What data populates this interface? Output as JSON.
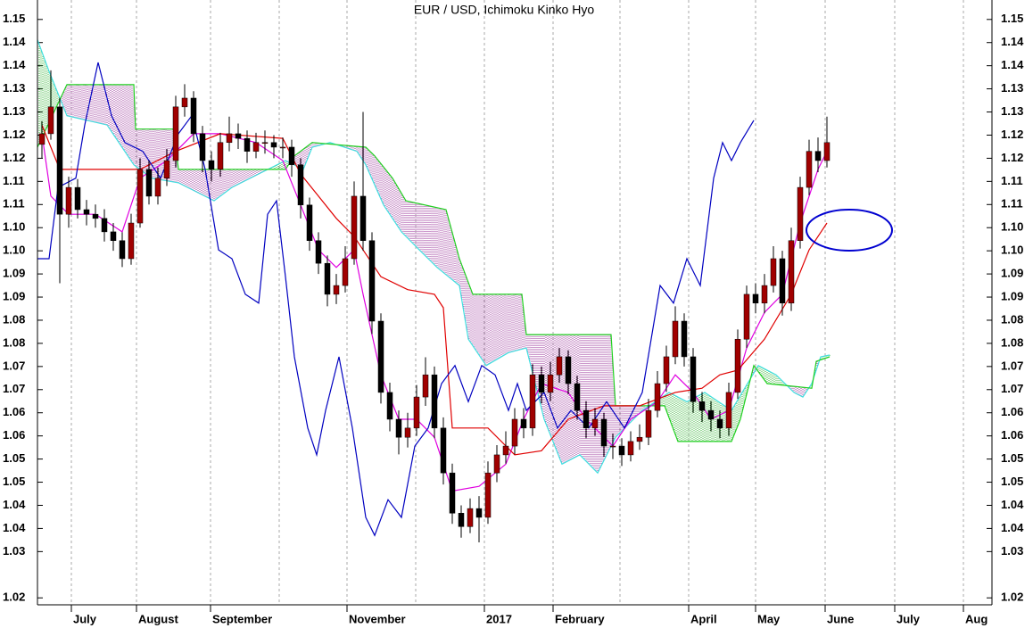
{
  "chart_data": {
    "type": "candlestick",
    "title": "EUR / USD, Ichimoku Kinko Hyo",
    "xlim": [
      -0.5,
      106.5
    ],
    "ylim": [
      1.0185,
      1.1492
    ],
    "xticks": [
      {
        "value": 3.3,
        "label": "July"
      },
      {
        "value": 10.6,
        "label": "August"
      },
      {
        "value": 18.9,
        "label": "September"
      },
      {
        "value": 34.2,
        "label": "November"
      },
      {
        "value": 49.6,
        "label": "2017"
      },
      {
        "value": 57.3,
        "label": "February"
      },
      {
        "value": 72.5,
        "label": "April"
      },
      {
        "value": 80.0,
        "label": "May"
      },
      {
        "value": 87.8,
        "label": "June"
      },
      {
        "value": 95.6,
        "label": "July"
      },
      {
        "value": 103.3,
        "label": "Aug"
      }
    ],
    "xgrid": [
      26.6,
      41.9,
      64.8
    ],
    "yticks": [
      {
        "value": 1.145,
        "label": "1.15"
      },
      {
        "value": 1.14,
        "label": "1.14"
      },
      {
        "value": 1.135,
        "label": "1.14"
      },
      {
        "value": 1.13,
        "label": "1.13"
      },
      {
        "value": 1.125,
        "label": "1.13"
      },
      {
        "value": 1.12,
        "label": "1.12"
      },
      {
        "value": 1.115,
        "label": "1.12"
      },
      {
        "value": 1.11,
        "label": "1.11"
      },
      {
        "value": 1.105,
        "label": "1.11"
      },
      {
        "value": 1.1,
        "label": "1.10"
      },
      {
        "value": 1.095,
        "label": "1.10"
      },
      {
        "value": 1.09,
        "label": "1.09"
      },
      {
        "value": 1.085,
        "label": "1.09"
      },
      {
        "value": 1.08,
        "label": "1.08"
      },
      {
        "value": 1.075,
        "label": "1.08"
      },
      {
        "value": 1.07,
        "label": "1.07"
      },
      {
        "value": 1.065,
        "label": "1.07"
      },
      {
        "value": 1.06,
        "label": "1.06"
      },
      {
        "value": 1.055,
        "label": "1.06"
      },
      {
        "value": 1.05,
        "label": "1.05"
      },
      {
        "value": 1.045,
        "label": "1.05"
      },
      {
        "value": 1.04,
        "label": "1.04"
      },
      {
        "value": 1.035,
        "label": "1.04"
      },
      {
        "value": 1.03,
        "label": "1.03"
      },
      {
        "value": 1.02,
        "label": "1.02"
      }
    ],
    "up_color": "#a00000",
    "down_color": "#000000",
    "x": [
      0,
      1,
      2,
      3,
      4,
      5,
      6,
      7,
      8,
      9,
      10,
      11,
      12,
      13,
      14,
      15,
      16,
      17,
      18,
      19,
      20,
      21,
      22,
      23,
      24,
      25,
      26,
      27,
      28,
      29,
      30,
      31,
      32,
      33,
      34,
      35,
      36,
      37,
      38,
      39,
      40,
      41,
      42,
      43,
      44,
      45,
      46,
      47,
      48,
      49,
      50,
      51,
      52,
      53,
      54,
      55,
      56,
      57,
      58,
      59,
      60,
      61,
      62,
      63,
      64,
      65,
      66,
      67,
      68,
      69,
      70,
      71,
      72,
      73,
      74,
      75,
      76,
      77,
      78,
      79,
      80,
      81,
      82,
      83,
      84,
      85,
      86,
      87,
      88
    ],
    "open": [
      1.118,
      1.1203,
      1.1261,
      1.1029,
      1.1087,
      1.1039,
      1.1029,
      1.102,
      1.0991,
      1.0972,
      1.0933,
      1.101,
      1.1126,
      1.1068,
      1.1107,
      1.1145,
      1.1261,
      1.128,
      1.1203,
      1.1145,
      1.1126,
      1.1184,
      1.1203,
      1.1193,
      1.1165,
      1.1184,
      1.1184,
      1.1174,
      1.1174,
      1.1136,
      1.1049,
      1.0972,
      1.0923,
      1.0856,
      1.0875,
      1.0933,
      1.1068,
      1.0972,
      1.0798,
      1.0644,
      1.0586,
      1.0547,
      1.0567,
      1.0634,
      1.0682,
      1.0567,
      1.047,
      1.0383,
      1.0354,
      1.0393,
      1.0374,
      1.047,
      1.0509,
      1.0528,
      1.0586,
      1.0567,
      1.0682,
      1.0644,
      1.0682,
      1.0721,
      1.0663,
      1.0605,
      1.0567,
      1.0586,
      1.0528,
      1.0528,
      1.0509,
      1.0538,
      1.0547,
      1.0605,
      1.0663,
      1.0721,
      1.0798,
      1.0721,
      1.0624,
      1.0605,
      1.0586,
      1.0567,
      1.0644,
      1.0759,
      1.0856,
      1.0837,
      1.0875,
      1.0933,
      1.0837,
      1.0972,
      1.1087,
      1.1165,
      1.1145
    ],
    "high": [
      1.123,
      1.134,
      1.128,
      1.111,
      1.1105,
      1.106,
      1.105,
      1.104,
      1.101,
      1.099,
      1.103,
      1.115,
      1.1145,
      1.113,
      1.117,
      1.1285,
      1.131,
      1.1295,
      1.122,
      1.1165,
      1.1205,
      1.124,
      1.1225,
      1.121,
      1.1205,
      1.121,
      1.12,
      1.1195,
      1.119,
      1.115,
      1.1065,
      1.099,
      1.094,
      1.09,
      1.096,
      1.11,
      1.125,
      1.099,
      1.0815,
      1.0665,
      1.0605,
      1.06,
      1.066,
      1.072,
      1.07,
      1.059,
      1.049,
      1.04,
      1.0415,
      1.042,
      1.0495,
      1.053,
      1.056,
      1.061,
      1.061,
      1.0705,
      1.07,
      1.071,
      1.074,
      1.0735,
      1.068,
      1.0625,
      1.061,
      1.06,
      1.0555,
      1.0545,
      1.056,
      1.0575,
      1.063,
      1.069,
      1.0745,
      1.083,
      1.0815,
      1.074,
      1.0645,
      1.0625,
      1.0605,
      1.0665,
      1.078,
      1.0875,
      1.088,
      1.09,
      1.096,
      1.095,
      1.1,
      1.111,
      1.119,
      1.1195,
      1.124
    ],
    "low": [
      1.115,
      1.119,
      1.088,
      1.1,
      1.102,
      1.1005,
      1.1,
      1.097,
      1.095,
      1.0915,
      1.092,
      1.1,
      1.105,
      1.105,
      1.109,
      1.113,
      1.124,
      1.1185,
      1.112,
      1.11,
      1.111,
      1.1165,
      1.117,
      1.114,
      1.115,
      1.116,
      1.115,
      1.115,
      1.111,
      1.102,
      1.095,
      1.09,
      1.083,
      1.0835,
      1.086,
      1.092,
      1.095,
      1.077,
      1.062,
      1.056,
      1.051,
      1.0525,
      1.055,
      1.0615,
      1.0545,
      1.0445,
      1.036,
      1.033,
      1.034,
      1.032,
      1.036,
      1.045,
      1.049,
      1.051,
      1.0545,
      1.055,
      1.062,
      1.0625,
      1.0665,
      1.064,
      1.0585,
      1.0545,
      1.055,
      1.0505,
      1.05,
      1.0485,
      1.0495,
      1.052,
      1.053,
      1.059,
      1.0645,
      1.0705,
      1.07,
      1.06,
      1.058,
      1.056,
      1.0545,
      1.055,
      1.063,
      1.074,
      1.0815,
      1.0815,
      1.086,
      1.081,
      1.082,
      1.0955,
      1.107,
      1.112,
      1.113
    ],
    "close": [
      1.1203,
      1.1261,
      1.1029,
      1.1087,
      1.1039,
      1.1029,
      1.102,
      1.0991,
      1.0972,
      1.0933,
      1.101,
      1.1126,
      1.1068,
      1.1107,
      1.1145,
      1.1261,
      1.128,
      1.1203,
      1.1145,
      1.1126,
      1.1184,
      1.1203,
      1.1193,
      1.1165,
      1.1184,
      1.1184,
      1.1174,
      1.1174,
      1.1136,
      1.1049,
      1.0972,
      1.0923,
      1.0856,
      1.0875,
      1.0933,
      1.1068,
      1.0972,
      1.0798,
      1.0644,
      1.0586,
      1.0547,
      1.0567,
      1.0634,
      1.0682,
      1.0567,
      1.047,
      1.0383,
      1.0354,
      1.0393,
      1.0374,
      1.047,
      1.0509,
      1.0528,
      1.0586,
      1.0567,
      1.0682,
      1.0644,
      1.0682,
      1.0721,
      1.0663,
      1.0605,
      1.0567,
      1.0586,
      1.0528,
      1.0528,
      1.0509,
      1.0538,
      1.0547,
      1.0605,
      1.0663,
      1.0721,
      1.0798,
      1.0721,
      1.0624,
      1.0605,
      1.0586,
      1.0567,
      1.0644,
      1.0759,
      1.0856,
      1.0837,
      1.0875,
      1.0933,
      1.0837,
      1.0972,
      1.1087,
      1.1165,
      1.1145,
      1.1184
    ],
    "series": [
      {
        "color": "#e000e0",
        "x": [
          0,
          1,
          3,
          6,
          9,
          11,
          14,
          17,
          20,
          24,
          27,
          29,
          31,
          33,
          35,
          36,
          38,
          40,
          42,
          44,
          46,
          49,
          52,
          54,
          56,
          59,
          61,
          64,
          66,
          69,
          71,
          73,
          75,
          77,
          79,
          81,
          83,
          85,
          87,
          88
        ],
        "values": [
          1.1203,
          1.1068,
          1.1029,
          1.1029,
          1.0991,
          1.1107,
          1.1145,
          1.1203,
          1.1203,
          1.1184,
          1.1145,
          1.1049,
          1.0952,
          1.0914,
          1.0952,
          1.0856,
          1.0682,
          1.0586,
          1.0586,
          1.0547,
          1.0431,
          1.0441,
          1.0489,
          1.0586,
          1.0663,
          1.0644,
          1.0586,
          1.0528,
          1.0586,
          1.0624,
          1.0682,
          1.0644,
          1.0586,
          1.0605,
          1.074,
          1.0817,
          1.0856,
          1.101,
          1.1126,
          1.1165
        ]
      },
      {
        "color": "#e00000",
        "x": [
          0,
          2,
          11,
          15,
          20,
          27,
          29,
          31,
          33,
          35,
          38,
          41,
          44,
          45,
          46,
          50,
          53,
          56,
          59,
          63,
          67,
          71,
          74,
          76,
          78,
          81,
          84,
          86,
          88
        ],
        "values": [
          1.1222,
          1.1126,
          1.1126,
          1.1165,
          1.1203,
          1.1193,
          1.1116,
          1.1068,
          1.102,
          1.0981,
          1.0894,
          1.0866,
          1.0856,
          1.0827,
          1.0567,
          1.0567,
          1.0509,
          1.0518,
          1.0586,
          1.0615,
          1.0615,
          1.0644,
          1.0653,
          1.0682,
          1.0692,
          1.0759,
          1.0856,
          1.0952,
          1.101
        ]
      },
      {
        "color": "#0000c0",
        "x": [
          -0.5,
          0.8,
          1.8,
          3.8,
          4.8,
          6.3,
          7.8,
          9.3,
          11.3,
          13.3,
          15.3,
          16.8,
          18.3,
          19.8,
          21.3,
          22.8,
          24.3,
          25.3,
          26.3,
          27.3,
          28.3,
          29.8,
          30.8,
          31.8,
          33.3,
          34.8,
          36.3,
          37.3,
          38.8,
          40.3,
          41.8,
          43.3,
          44.8,
          46.3,
          47.8,
          49.3,
          50.8,
          52.3,
          53.3,
          54.3,
          56.3,
          57.8,
          59.3,
          61.3,
          63.3,
          65.3,
          67.3,
          69.3,
          70.8,
          72.3,
          73.8,
          75.3,
          76.3,
          77.3,
          78.3,
          79.8
        ],
        "values": [
          1.0933,
          1.0933,
          1.1087,
          1.1107,
          1.1222,
          1.1357,
          1.1242,
          1.1184,
          1.1165,
          1.1107,
          1.1203,
          1.1242,
          1.1126,
          1.0952,
          1.0933,
          1.0856,
          1.0837,
          1.1029,
          1.1058,
          1.0894,
          1.0721,
          1.0567,
          1.0509,
          1.0605,
          1.0721,
          1.0567,
          1.0374,
          1.0335,
          1.0412,
          1.0374,
          1.0528,
          1.0567,
          1.0663,
          1.0702,
          1.0624,
          1.0702,
          1.0682,
          1.0605,
          1.0663,
          1.0605,
          1.0644,
          1.0567,
          1.0605,
          1.0567,
          1.0624,
          1.0567,
          1.0644,
          1.0875,
          1.0837,
          1.0933,
          1.0875,
          1.1107,
          1.1184,
          1.1145,
          1.1184,
          1.1232
        ]
      }
    ],
    "cloud": {
      "bull_color": "#00a000",
      "bear_color": "#800080",
      "a": {
        "color": "#40e0e0",
        "x": [
          -0.5,
          0.8,
          2.8,
          7.3,
          10.3,
          12.3,
          15.3,
          19.3,
          21.3,
          24.3,
          27.3,
          29.3,
          30.3,
          32.3,
          35.3,
          36.3,
          38.3,
          40.3,
          42.3,
          44.3,
          46.8,
          47.8,
          49.8,
          52.3,
          54.3,
          56.3,
          58.3,
          60.3,
          62.3,
          64.3,
          67.3,
          70.3,
          72.3,
          74.3,
          77.3,
          80.3,
          82.3,
          84.3,
          85.3,
          86.3,
          87.3,
          88.3
        ],
        "values": [
          1.1406,
          1.1338,
          1.1242,
          1.1222,
          1.1136,
          1.1107,
          1.1097,
          1.1058,
          1.1087,
          1.1116,
          1.1145,
          1.1126,
          1.1174,
          1.1184,
          1.1165,
          1.1136,
          1.1049,
          1.0991,
          1.0952,
          1.0914,
          1.0875,
          1.0759,
          1.0702,
          1.073,
          1.074,
          1.0586,
          1.0489,
          1.0509,
          1.047,
          1.0547,
          1.0605,
          1.0644,
          1.0624,
          1.0644,
          1.0605,
          1.0702,
          1.0682,
          1.0644,
          1.0634,
          1.0663,
          1.0721,
          1.0725
        ]
      },
      "b": {
        "color": "#20d020",
        "x": [
          -0.5,
          2.8,
          10.3,
          10.5,
          14.8,
          15.3,
          27.3,
          28.3,
          30.3,
          36.3,
          37.3,
          39.3,
          40.8,
          45.3,
          46.8,
          48.3,
          53.8,
          54.3,
          63.8,
          64.3,
          69.8,
          71.3,
          77.3,
          78.3,
          79.8,
          81.3,
          86.3,
          86.8,
          88.3
        ],
        "values": [
          1.1174,
          1.1309,
          1.1309,
          1.1213,
          1.1213,
          1.1126,
          1.1126,
          1.1155,
          1.1184,
          1.1174,
          1.1155,
          1.1107,
          1.1058,
          1.1039,
          1.0933,
          1.0856,
          1.0856,
          1.0769,
          1.0769,
          1.0615,
          1.0615,
          1.0538,
          1.0538,
          1.0586,
          1.0702,
          1.0663,
          1.0653,
          1.0711,
          1.0721
        ]
      }
    }
  }
}
